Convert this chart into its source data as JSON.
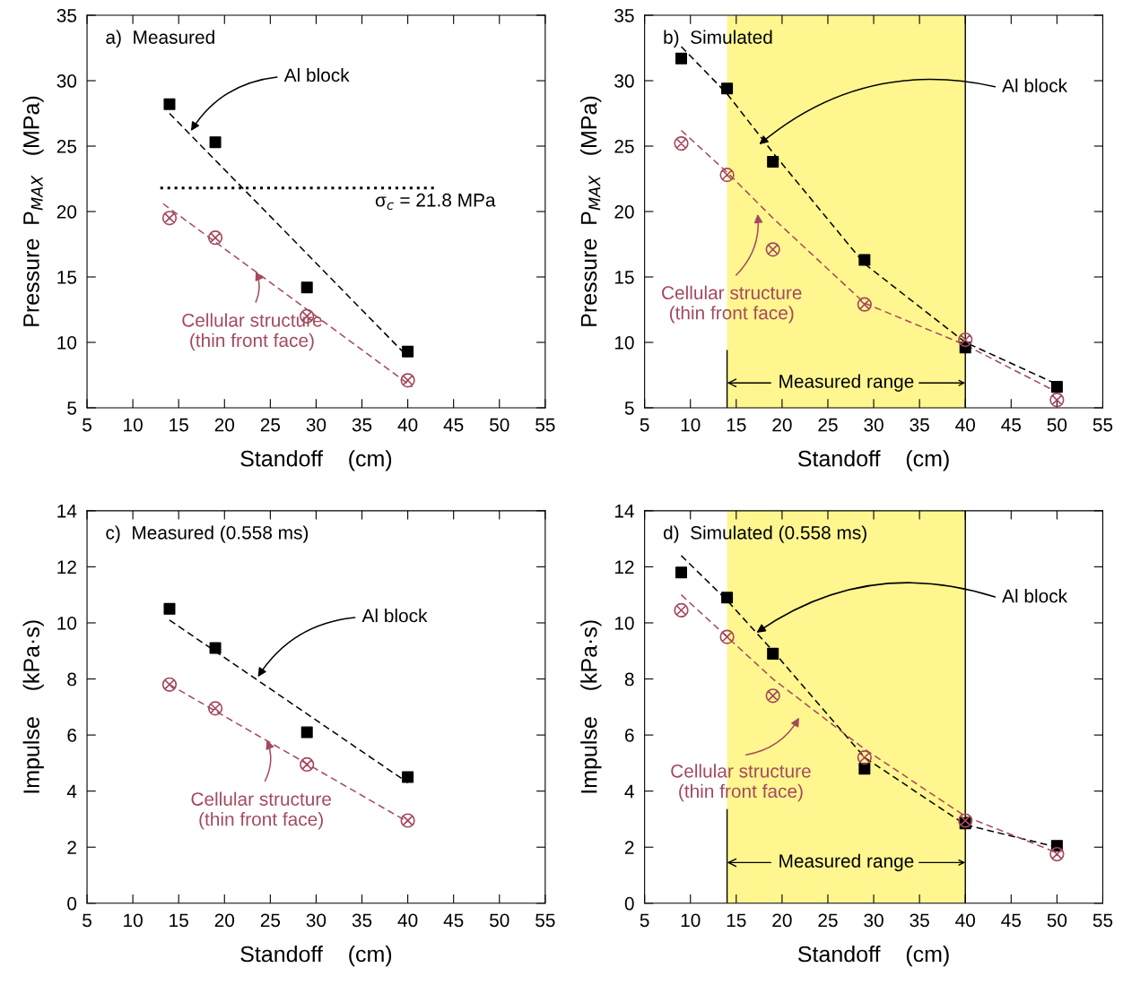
{
  "chart_data": [
    {
      "type": "scatter",
      "title": "a)  Measured",
      "xlabel": "Standoff    (cm)",
      "ylabel": "Pressure  P$_{MAX}$   (MPa)",
      "xlim": [
        5,
        55
      ],
      "xticks": [
        5,
        10,
        15,
        20,
        25,
        30,
        35,
        40,
        45,
        50,
        55
      ],
      "ylim": [
        5,
        35
      ],
      "yticks": [
        5,
        10,
        15,
        20,
        25,
        30,
        35
      ],
      "series": [
        {
          "name": "Al block",
          "type": "scatter",
          "marker": "square",
          "color": "#000000",
          "x": [
            14,
            19,
            29,
            40
          ],
          "values": [
            28.2,
            25.3,
            14.2,
            9.3
          ]
        },
        {
          "name": "Cellular structure\n(thin front face)",
          "type": "scatter",
          "marker": "cross",
          "color": "#a34a5e",
          "x": [
            14,
            19,
            29,
            40
          ],
          "values": [
            19.5,
            18.0,
            12.0,
            7.1
          ]
        },
        {
          "type": "line",
          "line_style": "dashed",
          "marker": "none",
          "color": "#000000",
          "x": [
            14,
            40
          ],
          "values": [
            27.5,
            8.9
          ]
        },
        {
          "type": "line",
          "line_style": "dashed",
          "marker": "none",
          "color": "#a34a5e",
          "x": [
            13.3,
            40.5
          ],
          "values": [
            20.6,
            6.6
          ]
        },
        {
          "type": "line",
          "line_style": "dotted",
          "marker": "none",
          "color": "#000000",
          "x": [
            13,
            43
          ],
          "values": [
            21.8,
            21.8
          ]
        }
      ],
      "annotations": [
        {
          "text": "σ$_{c}$ = 21.8 MPa",
          "x": 43,
          "y": 21.8
        }
      ]
    },
    {
      "type": "scatter",
      "title": "b)  Simulated",
      "xlabel": "Standoff    (cm)",
      "ylabel": "Pressure  P$_{MAX}$   (MPa)",
      "xlim": [
        5,
        55
      ],
      "xticks": [
        5,
        10,
        15,
        20,
        25,
        30,
        35,
        40,
        45,
        50,
        55
      ],
      "ylim": [
        5,
        35
      ],
      "yticks": [
        5,
        10,
        15,
        20,
        25,
        30,
        35
      ],
      "bands": [
        {
          "axis": "x",
          "from": 14,
          "to": 40,
          "label": "Measured range",
          "color": "#fff68f"
        }
      ],
      "series": [
        {
          "name": "Al block",
          "type": "scatter",
          "marker": "square",
          "color": "#000000",
          "x": [
            9,
            14,
            19,
            29,
            40,
            50
          ],
          "values": [
            31.7,
            29.4,
            23.8,
            16.3,
            9.6,
            6.6
          ]
        },
        {
          "name": "Cellular structure\n(thin front face)",
          "type": "scatter",
          "marker": "cross",
          "color": "#a34a5e",
          "x": [
            9,
            14,
            19,
            29,
            40,
            50
          ],
          "values": [
            25.2,
            22.8,
            17.1,
            12.9,
            10.2,
            5.6
          ]
        },
        {
          "type": "line",
          "line_style": "dashed",
          "marker": "none",
          "color": "#000000",
          "x": [
            9,
            14,
            19,
            29,
            40,
            50
          ],
          "values": [
            32.6,
            29.0,
            24.5,
            16.0,
            10.0,
            6.8
          ]
        },
        {
          "type": "line",
          "line_style": "dashed",
          "marker": "none",
          "color": "#a34a5e",
          "x": [
            9,
            14,
            19,
            29,
            40,
            50
          ],
          "values": [
            26.2,
            23.0,
            19.5,
            13.0,
            9.8,
            6.2
          ]
        }
      ]
    },
    {
      "type": "scatter",
      "title": "c)  Measured (0.558 ms)",
      "xlabel": "Standoff    (cm)",
      "ylabel": "Impulse    (kPa·s)",
      "xlim": [
        5,
        55
      ],
      "xticks": [
        5,
        10,
        15,
        20,
        25,
        30,
        35,
        40,
        45,
        50,
        55
      ],
      "ylim": [
        0,
        14
      ],
      "yticks": [
        0,
        2,
        4,
        6,
        8,
        10,
        12,
        14
      ],
      "series": [
        {
          "name": "Al block",
          "type": "scatter",
          "marker": "square",
          "color": "#000000",
          "x": [
            14,
            19,
            29,
            40
          ],
          "values": [
            10.5,
            9.1,
            6.1,
            4.5
          ]
        },
        {
          "name": "Cellular structure\n(thin front face)",
          "type": "scatter",
          "marker": "cross",
          "color": "#a34a5e",
          "x": [
            14,
            19,
            29,
            40
          ],
          "values": [
            7.8,
            6.95,
            4.95,
            2.95
          ]
        },
        {
          "type": "line",
          "line_style": "dashed",
          "marker": "none",
          "color": "#000000",
          "x": [
            14,
            40
          ],
          "values": [
            10.1,
            4.3
          ]
        },
        {
          "type": "line",
          "line_style": "dashed",
          "marker": "none",
          "color": "#a34a5e",
          "x": [
            14,
            40
          ],
          "values": [
            7.8,
            2.9
          ]
        }
      ]
    },
    {
      "type": "scatter",
      "title": "d)  Simulated (0.558 ms)",
      "xlabel": "Standoff    (cm)",
      "ylabel": "Impulse    (kPa·s)",
      "xlim": [
        5,
        55
      ],
      "xticks": [
        5,
        10,
        15,
        20,
        25,
        30,
        35,
        40,
        45,
        50,
        55
      ],
      "ylim": [
        0,
        14
      ],
      "yticks": [
        0,
        2,
        4,
        6,
        8,
        10,
        12,
        14
      ],
      "bands": [
        {
          "axis": "x",
          "from": 14,
          "to": 40,
          "label": "Measured range",
          "color": "#fff68f"
        }
      ],
      "series": [
        {
          "name": "Al block",
          "type": "scatter",
          "marker": "square",
          "color": "#000000",
          "x": [
            9,
            14,
            19,
            29,
            40,
            50
          ],
          "values": [
            11.8,
            10.9,
            8.9,
            4.8,
            2.85,
            2.05
          ]
        },
        {
          "name": "Cellular structure\n(thin front face)",
          "type": "scatter",
          "marker": "cross",
          "color": "#a34a5e",
          "x": [
            9,
            14,
            19,
            29,
            40,
            50
          ],
          "values": [
            10.45,
            9.5,
            7.4,
            5.2,
            2.95,
            1.75
          ]
        },
        {
          "type": "line",
          "line_style": "dashed",
          "marker": "none",
          "color": "#000000",
          "x": [
            9,
            14,
            19,
            29,
            40,
            50
          ],
          "values": [
            12.4,
            10.8,
            9.0,
            5.2,
            2.8,
            2.0
          ]
        },
        {
          "type": "line",
          "line_style": "dashed",
          "marker": "none",
          "color": "#a34a5e",
          "x": [
            9,
            14,
            19,
            29,
            40,
            50
          ],
          "values": [
            11.0,
            9.5,
            8.0,
            5.5,
            3.1,
            1.8
          ]
        }
      ]
    }
  ]
}
